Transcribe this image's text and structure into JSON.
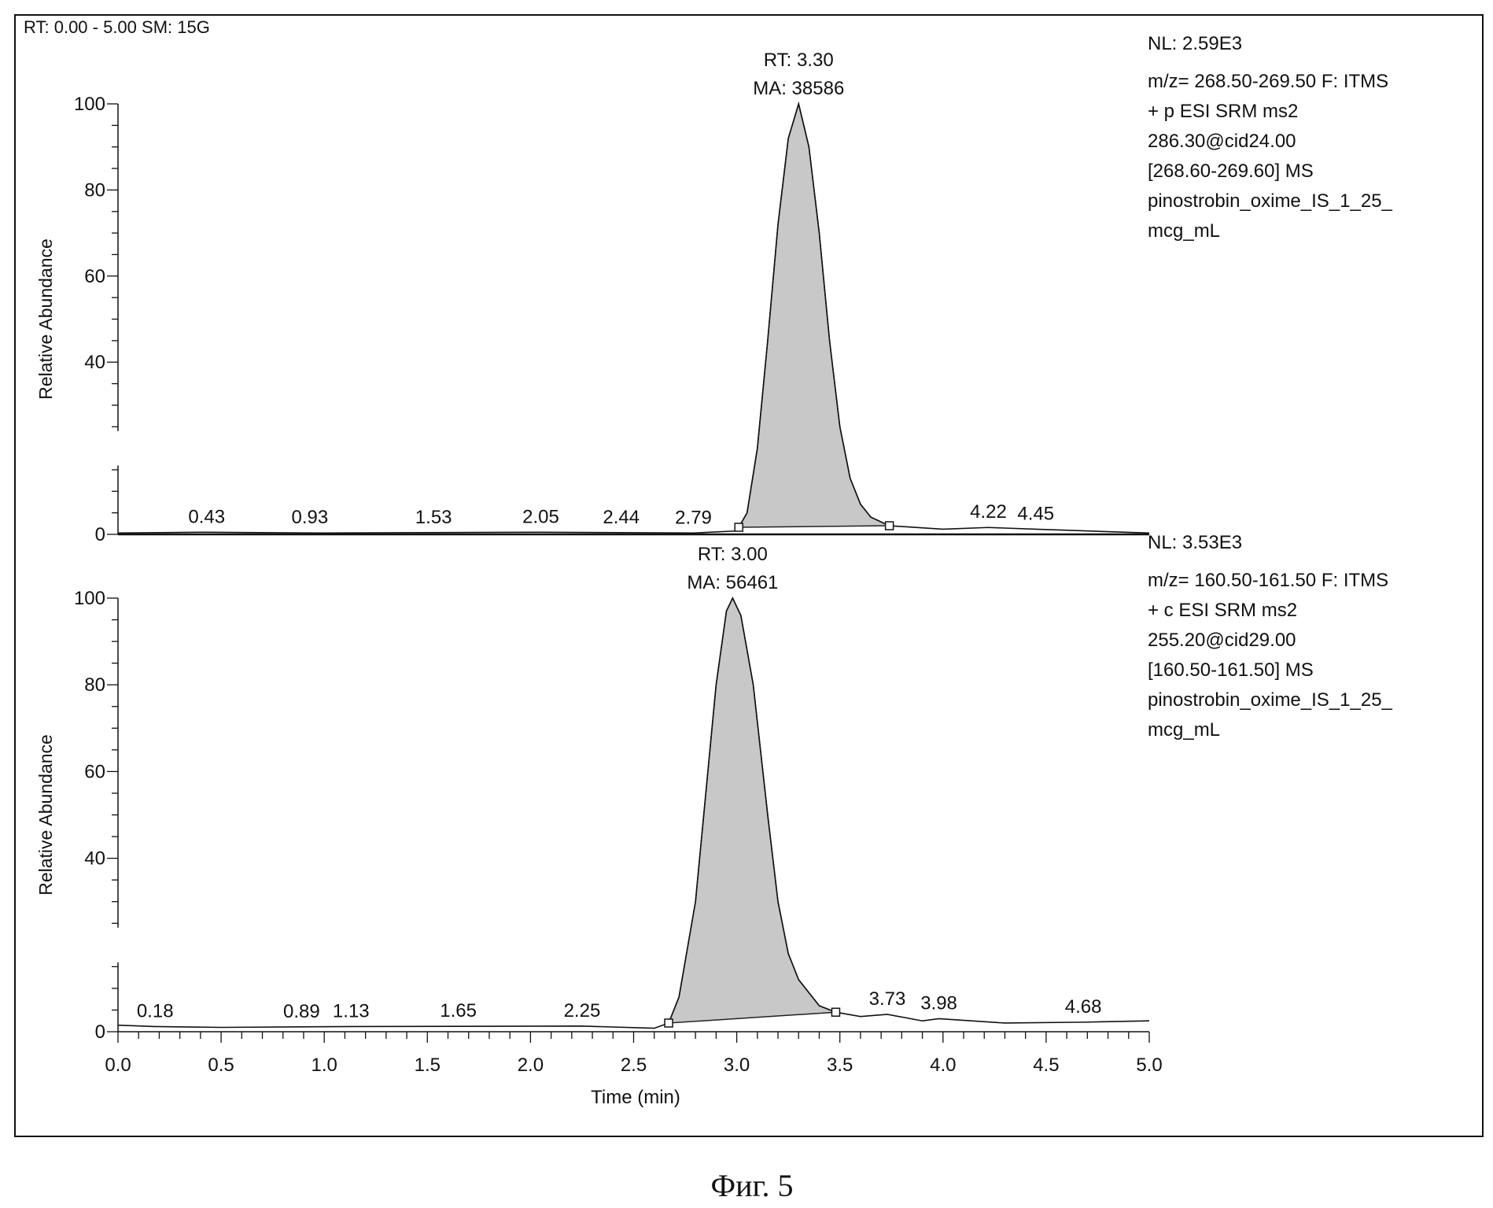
{
  "figure_caption": "Фиг. 5",
  "chart_data": [
    {
      "type": "line",
      "header": "RT: 0.00 - 5.00   SM: 15G",
      "xlim": [
        0,
        5
      ],
      "ylim": [
        0,
        100
      ],
      "ylabel": "Relative Abundance",
      "yticks": [
        "0",
        "40",
        "60",
        "80",
        "100"
      ],
      "peak_label": {
        "rt": "RT: 3.30",
        "ma": "MA: 38586",
        "x": 3.3
      },
      "info": [
        "NL: 2.59E3",
        "m/z= 268.50-269.50 F: ITMS",
        "+ p ESI SRM ms2",
        "286.30@cid24.00",
        "[268.60-269.60]  MS",
        "pinostrobin_oxime_IS_1_25_",
        "mcg_mL"
      ],
      "integration": [
        3.01,
        3.74
      ],
      "peak_labels": [
        {
          "text": "0.43",
          "x": 0.43
        },
        {
          "text": "0.93",
          "x": 0.93
        },
        {
          "text": "1.53",
          "x": 1.53
        },
        {
          "text": "2.05",
          "x": 2.05
        },
        {
          "text": "2.44",
          "x": 2.44
        },
        {
          "text": "2.79",
          "x": 2.79
        },
        {
          "text": "4.22",
          "x": 4.22
        },
        {
          "text": "4.45",
          "x": 4.45
        }
      ],
      "points": [
        [
          0,
          0.3
        ],
        [
          0.43,
          0.5
        ],
        [
          1,
          0.3
        ],
        [
          2.05,
          0.5
        ],
        [
          2.79,
          0.3
        ],
        [
          3.0,
          0.8
        ],
        [
          3.05,
          5
        ],
        [
          3.1,
          20
        ],
        [
          3.15,
          45
        ],
        [
          3.2,
          72
        ],
        [
          3.25,
          92
        ],
        [
          3.3,
          100
        ],
        [
          3.35,
          90
        ],
        [
          3.4,
          70
        ],
        [
          3.45,
          45
        ],
        [
          3.5,
          25
        ],
        [
          3.55,
          13
        ],
        [
          3.6,
          7
        ],
        [
          3.65,
          4
        ],
        [
          3.74,
          2
        ],
        [
          4.0,
          1.2
        ],
        [
          4.22,
          1.6
        ],
        [
          4.45,
          1.2
        ],
        [
          5.0,
          0.3
        ]
      ]
    },
    {
      "type": "line",
      "xlim": [
        0,
        5
      ],
      "ylim": [
        0,
        100
      ],
      "xlabel": "Time (min)",
      "ylabel": "Relative Abundance",
      "xticks": [
        "0.0",
        "0.5",
        "1.0",
        "1.5",
        "2.0",
        "2.5",
        "3.0",
        "3.5",
        "4.0",
        "4.5",
        "5.0"
      ],
      "yticks": [
        "0",
        "40",
        "60",
        "80",
        "100"
      ],
      "peak_label": {
        "rt": "RT: 3.00",
        "ma": "MA: 56461",
        "x": 2.98
      },
      "info": [
        "NL: 3.53E3",
        "m/z= 160.50-161.50 F: ITMS",
        "+ c ESI SRM ms2",
        "255.20@cid29.00",
        "[160.50-161.50]  MS",
        "pinostrobin_oxime_IS_1_25_",
        "mcg_mL"
      ],
      "integration": [
        2.67,
        3.48
      ],
      "peak_labels": [
        {
          "text": "0.18",
          "x": 0.18
        },
        {
          "text": "0.89",
          "x": 0.89
        },
        {
          "text": "1.13",
          "x": 1.13
        },
        {
          "text": "1.65",
          "x": 1.65
        },
        {
          "text": "2.25",
          "x": 2.25
        },
        {
          "text": "3.73",
          "x": 3.73
        },
        {
          "text": "3.98",
          "x": 3.98
        },
        {
          "text": "4.68",
          "x": 4.68
        }
      ],
      "points": [
        [
          0,
          1.5
        ],
        [
          0.18,
          1.2
        ],
        [
          0.5,
          1
        ],
        [
          1.13,
          1.2
        ],
        [
          2.25,
          1.3
        ],
        [
          2.6,
          0.8
        ],
        [
          2.67,
          2
        ],
        [
          2.72,
          8
        ],
        [
          2.8,
          30
        ],
        [
          2.85,
          55
        ],
        [
          2.9,
          80
        ],
        [
          2.95,
          97
        ],
        [
          2.98,
          100
        ],
        [
          3.02,
          96
        ],
        [
          3.08,
          80
        ],
        [
          3.15,
          50
        ],
        [
          3.2,
          30
        ],
        [
          3.25,
          18
        ],
        [
          3.3,
          12
        ],
        [
          3.4,
          6
        ],
        [
          3.48,
          4.5
        ],
        [
          3.6,
          3.5
        ],
        [
          3.73,
          4
        ],
        [
          3.9,
          2.5
        ],
        [
          3.98,
          3
        ],
        [
          4.3,
          2
        ],
        [
          4.68,
          2.2
        ],
        [
          5.0,
          2.5
        ]
      ]
    }
  ]
}
